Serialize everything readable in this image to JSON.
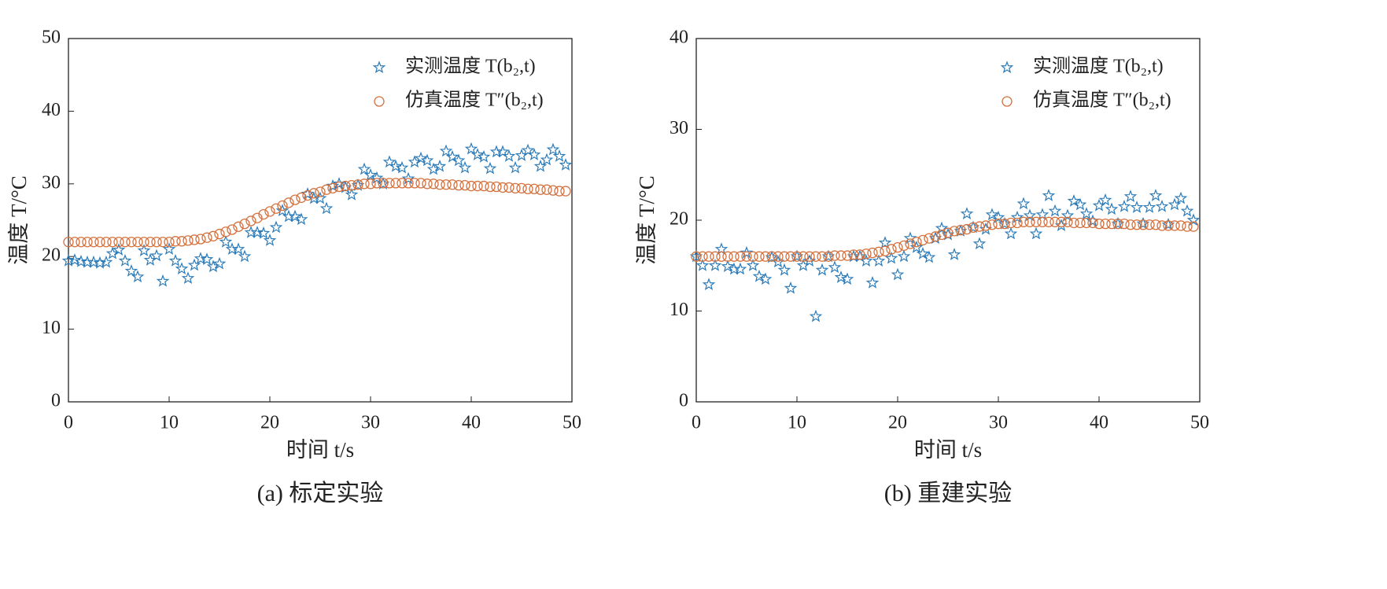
{
  "chart_data": [
    {
      "type": "scatter",
      "caption": "(a) 标定实验",
      "xlabel": "时间 t/s",
      "ylabel": "温度 T/°C",
      "xlim": [
        0,
        50
      ],
      "xticks": [
        0,
        10,
        20,
        30,
        40,
        50
      ],
      "ylim": [
        0,
        50
      ],
      "yticks": [
        0,
        10,
        20,
        30,
        40,
        50
      ],
      "legend": "upper right",
      "x": [
        0,
        0.625,
        1.25,
        1.875,
        2.5,
        3.125,
        3.75,
        4.375,
        5,
        5.625,
        6.25,
        6.875,
        7.5,
        8.125,
        8.75,
        9.375,
        10,
        10.625,
        11.25,
        11.875,
        12.5,
        13.125,
        13.75,
        14.375,
        15,
        15.625,
        16.25,
        16.875,
        17.5,
        18.125,
        18.75,
        19.375,
        20,
        20.625,
        21.25,
        21.875,
        22.5,
        23.125,
        23.75,
        24.375,
        25,
        25.625,
        26.25,
        26.875,
        27.5,
        28.125,
        28.75,
        29.375,
        30,
        30.625,
        31.25,
        31.875,
        32.5,
        33.125,
        33.75,
        34.375,
        35,
        35.625,
        36.25,
        36.875,
        37.5,
        38.125,
        38.75,
        39.375,
        40,
        40.625,
        41.25,
        41.875,
        42.5,
        43.125,
        43.75,
        44.375,
        45,
        45.625,
        46.25,
        46.875,
        47.5,
        48.125,
        48.75,
        49.375
      ],
      "series": [
        {
          "name": "实测温度 T(b₂,t)",
          "marker": "star",
          "color": "#2b7bb9",
          "values": [
            19.4,
            19.5,
            19.3,
            19.2,
            19.2,
            19.1,
            19.2,
            20.4,
            20.9,
            19.4,
            18.0,
            17.2,
            20.8,
            19.5,
            20.1,
            16.6,
            21.0,
            19.4,
            18.3,
            17.0,
            18.8,
            19.7,
            19.6,
            18.6,
            19.0,
            22.0,
            21.0,
            21.0,
            20.0,
            23.3,
            23.3,
            23.2,
            22.2,
            24.0,
            26.3,
            25.5,
            25.5,
            25.1,
            28.6,
            28.0,
            28.0,
            26.6,
            29.7,
            30.0,
            29.5,
            28.5,
            29.8,
            32.0,
            31.2,
            30.8,
            30.0,
            33.0,
            32.4,
            32.2,
            30.7,
            33.0,
            33.5,
            33.2,
            32.0,
            32.4,
            34.5,
            33.7,
            33.2,
            32.2,
            34.8,
            34.0,
            33.7,
            32.1,
            34.4,
            34.4,
            33.8,
            32.2,
            33.9,
            34.6,
            34.0,
            32.4,
            33.3,
            34.7,
            33.8,
            32.6
          ]
        },
        {
          "name": "仿真温度 T″(b₂,t)",
          "marker": "circle",
          "color": "#d4703c",
          "values": [
            22.0,
            22.0,
            22.0,
            22.0,
            22.0,
            22.0,
            22.0,
            22.0,
            22.0,
            22.0,
            22.0,
            22.0,
            22.0,
            22.0,
            22.0,
            22.0,
            22.0,
            22.1,
            22.1,
            22.2,
            22.3,
            22.4,
            22.6,
            22.8,
            23.1,
            23.4,
            23.7,
            24.1,
            24.5,
            24.9,
            25.3,
            25.8,
            26.2,
            26.6,
            27.0,
            27.4,
            27.8,
            28.1,
            28.4,
            28.7,
            28.9,
            29.2,
            29.4,
            29.6,
            29.7,
            29.8,
            29.9,
            30.0,
            30.0,
            30.1,
            30.1,
            30.1,
            30.1,
            30.1,
            30.1,
            30.1,
            30.1,
            30.0,
            30.0,
            29.9,
            29.9,
            29.9,
            29.8,
            29.8,
            29.7,
            29.7,
            29.7,
            29.6,
            29.6,
            29.5,
            29.5,
            29.4,
            29.4,
            29.3,
            29.3,
            29.2,
            29.2,
            29.1,
            29.0,
            29.0
          ]
        }
      ]
    },
    {
      "type": "scatter",
      "caption": "(b) 重建实验",
      "xlabel": "时间 t/s",
      "ylabel": "温度 T/°C",
      "xlim": [
        0,
        50
      ],
      "xticks": [
        0,
        10,
        20,
        30,
        40,
        50
      ],
      "ylim": [
        0,
        40
      ],
      "yticks": [
        0,
        10,
        20,
        30,
        40
      ],
      "legend": "upper right",
      "x": [
        0,
        0.625,
        1.25,
        1.875,
        2.5,
        3.125,
        3.75,
        4.375,
        5,
        5.625,
        6.25,
        6.875,
        7.5,
        8.125,
        8.75,
        9.375,
        10,
        10.625,
        11.25,
        11.875,
        12.5,
        13.125,
        13.75,
        14.375,
        15,
        15.625,
        16.25,
        16.875,
        17.5,
        18.125,
        18.75,
        19.375,
        20,
        20.625,
        21.25,
        21.875,
        22.5,
        23.125,
        23.75,
        24.375,
        25,
        25.625,
        26.25,
        26.875,
        27.5,
        28.125,
        28.75,
        29.375,
        30,
        30.625,
        31.25,
        31.875,
        32.5,
        33.125,
        33.75,
        34.375,
        35,
        35.625,
        36.25,
        36.875,
        37.5,
        38.125,
        38.75,
        39.375,
        40,
        40.625,
        41.25,
        41.875,
        42.5,
        43.125,
        43.75,
        44.375,
        45,
        45.625,
        46.25,
        46.875,
        47.5,
        48.125,
        48.75,
        49.375
      ],
      "series": [
        {
          "name": "实测温度 T(b₂,t)",
          "marker": "star",
          "color": "#2b7bb9",
          "values": [
            16.0,
            15.0,
            12.9,
            15.0,
            16.8,
            14.9,
            14.6,
            14.6,
            16.4,
            15.0,
            13.8,
            13.5,
            15.9,
            15.4,
            14.5,
            12.5,
            16.0,
            15.0,
            15.5,
            9.4,
            14.5,
            16.0,
            14.8,
            13.7,
            13.5,
            16.0,
            16.0,
            15.5,
            13.1,
            15.5,
            17.5,
            15.8,
            14.0,
            16.0,
            18.0,
            17.0,
            16.3,
            15.9,
            18.0,
            19.1,
            18.4,
            16.2,
            18.8,
            20.7,
            19.2,
            17.4,
            19.0,
            20.6,
            20.3,
            19.6,
            18.5,
            20.3,
            21.8,
            20.5,
            18.5,
            20.6,
            22.7,
            21.0,
            19.4,
            20.5,
            22.1,
            21.7,
            20.7,
            19.9,
            21.6,
            22.2,
            21.2,
            19.6,
            21.5,
            22.6,
            21.4,
            19.6,
            21.4,
            22.7,
            21.5,
            19.5,
            21.7,
            22.4,
            21.0,
            20.0
          ]
        },
        {
          "name": "仿真温度 T″(b₂,t)",
          "marker": "circle",
          "color": "#d4703c",
          "values": [
            16.0,
            16.0,
            16.0,
            16.0,
            16.0,
            16.0,
            16.0,
            16.0,
            16.0,
            16.0,
            16.0,
            16.0,
            16.0,
            16.0,
            16.0,
            16.0,
            16.0,
            16.0,
            16.0,
            16.0,
            16.0,
            16.0,
            16.1,
            16.1,
            16.1,
            16.2,
            16.2,
            16.3,
            16.4,
            16.5,
            16.6,
            16.8,
            17.0,
            17.2,
            17.4,
            17.6,
            17.8,
            18.0,
            18.2,
            18.4,
            18.6,
            18.8,
            18.9,
            19.0,
            19.2,
            19.3,
            19.4,
            19.5,
            19.6,
            19.6,
            19.7,
            19.7,
            19.8,
            19.8,
            19.8,
            19.8,
            19.8,
            19.8,
            19.8,
            19.8,
            19.7,
            19.7,
            19.7,
            19.7,
            19.6,
            19.6,
            19.6,
            19.6,
            19.6,
            19.5,
            19.5,
            19.5,
            19.5,
            19.5,
            19.4,
            19.4,
            19.4,
            19.4,
            19.3,
            19.3
          ]
        }
      ]
    }
  ]
}
